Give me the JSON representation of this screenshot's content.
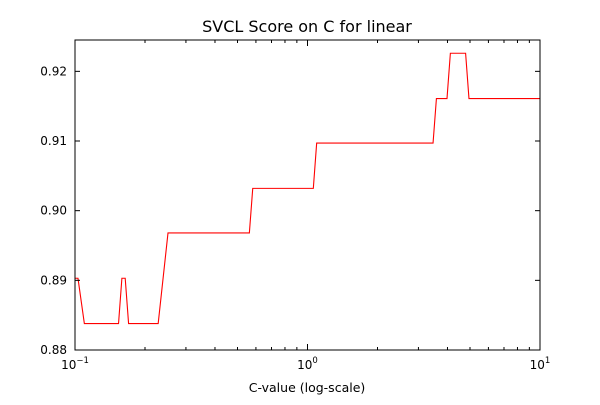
{
  "chart_data": {
    "type": "line",
    "title": "SVCL Score on C for linear",
    "xlabel": "C-value (log-scale)",
    "ylabel": "",
    "xscale": "log",
    "xlim": [
      0.1,
      10
    ],
    "ylim": [
      0.88,
      0.9245
    ],
    "grid": false,
    "legend": "none",
    "line_color": "#ff0000",
    "x_ticks": [
      {
        "value": 0.1,
        "base": "10",
        "exp": "−1"
      },
      {
        "value": 1,
        "base": "10",
        "exp": "0"
      },
      {
        "value": 10,
        "base": "10",
        "exp": "1"
      }
    ],
    "y_ticks": [
      {
        "value": 0.88,
        "label": "0.88"
      },
      {
        "value": 0.89,
        "label": "0.89"
      },
      {
        "value": 0.9,
        "label": "0.90"
      },
      {
        "value": 0.91,
        "label": "0.91"
      },
      {
        "value": 0.92,
        "label": "0.92"
      }
    ],
    "series": [
      {
        "x": [
          0.1,
          0.103,
          0.1097,
          0.1539,
          0.1591,
          0.1644,
          0.17,
          0.2279,
          0.2512,
          0.5623,
          0.5814,
          1.0593,
          1.0951,
          3.4674,
          3.5849,
          3.9811,
          4.1161,
          4.7863,
          4.9485,
          10
        ],
        "y": [
          0.8903,
          0.8903,
          0.8838,
          0.8838,
          0.8903,
          0.8903,
          0.8838,
          0.8838,
          0.8968,
          0.8968,
          0.9032,
          0.9032,
          0.9097,
          0.9097,
          0.9161,
          0.9161,
          0.9226,
          0.9226,
          0.9161,
          0.9161
        ]
      }
    ]
  }
}
